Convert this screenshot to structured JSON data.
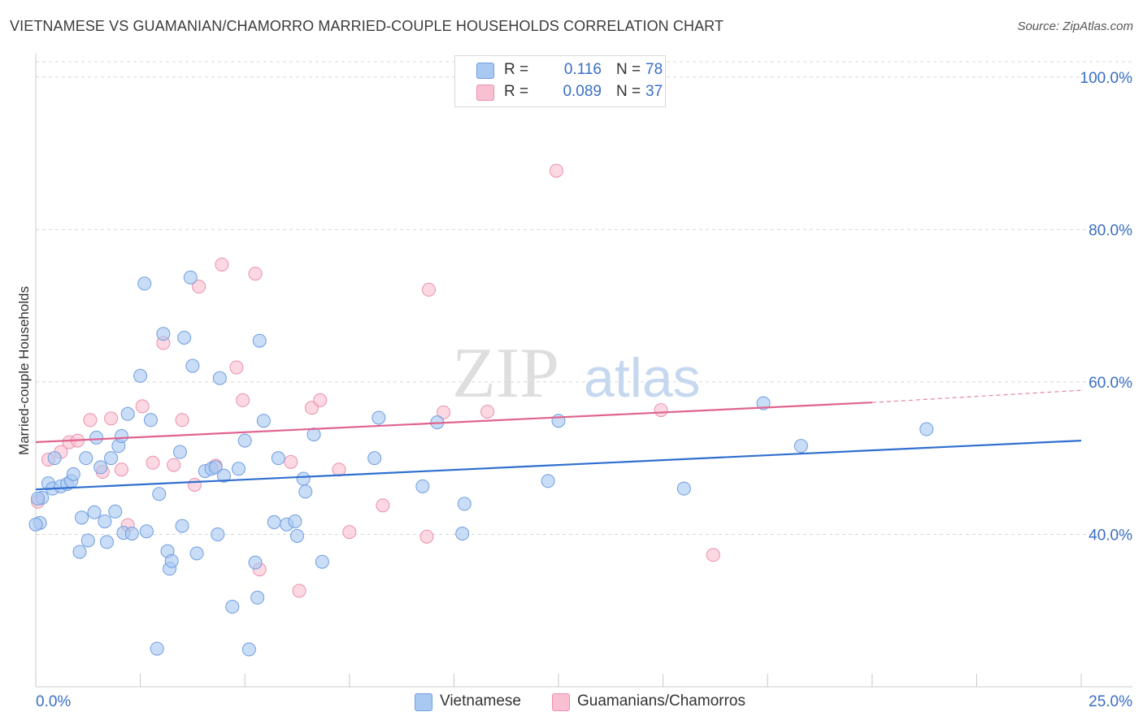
{
  "title": "VIETNAMESE VS GUAMANIAN/CHAMORRO MARRIED-COUPLE HOUSEHOLDS CORRELATION CHART",
  "source": "Source: ZipAtlas.com",
  "watermark": {
    "zip": "ZIP",
    "atlas": "atlas"
  },
  "colors": {
    "blue_fill": "#a9c8f2",
    "blue_stroke": "#6f9de0",
    "blue_line": "#2f6fcf",
    "pink_fill": "#f9c0d1",
    "pink_stroke": "#ec8fac",
    "pink_line": "#e0638f",
    "axis_text": "#3a6fc4",
    "grid": "#d8d8d8"
  },
  "legend": {
    "rows": [
      {
        "r_label": "R =",
        "r_value": "0.116",
        "n_label": "N =",
        "n_value": "78"
      },
      {
        "r_label": "R =",
        "r_value": "0.089",
        "n_label": "N =",
        "n_value": "37"
      }
    ]
  },
  "bottom_legend": {
    "series1": "Vietnamese",
    "series2": "Guamanians/Chamorros"
  },
  "chart_data": {
    "type": "scatter",
    "title": "VIETNAMESE VS GUAMANIAN/CHAMORRO MARRIED-COUPLE HOUSEHOLDS CORRELATION CHART",
    "xlabel": "",
    "ylabel": "Married-couple Households",
    "xlim": [
      0,
      25
    ],
    "ylim": [
      20,
      102
    ],
    "x_tick_labels": [
      {
        "value": 0,
        "label": "0.0%"
      },
      {
        "value": 25,
        "label": "25.0%"
      }
    ],
    "y_tick_labels": [
      {
        "value": 100,
        "label": "100.0%"
      },
      {
        "value": 80,
        "label": "80.0%"
      },
      {
        "value": 60,
        "label": "60.0%"
      },
      {
        "value": 40,
        "label": "40.0%"
      }
    ],
    "grid": true,
    "series": [
      {
        "name": "Vietnamese",
        "r": 0.116,
        "n": 78,
        "trend": {
          "x0": 0,
          "y0": 45.9,
          "x1": 25,
          "y1": 52.3
        },
        "points": [
          [
            0.1,
            41.5
          ],
          [
            0.15,
            44.8
          ],
          [
            0.3,
            46.7
          ],
          [
            0.4,
            46.0
          ],
          [
            0.45,
            50.0
          ],
          [
            0.6,
            46.3
          ],
          [
            0.75,
            46.6
          ],
          [
            0.85,
            47.0
          ],
          [
            0.9,
            47.9
          ],
          [
            1.05,
            37.7
          ],
          [
            1.1,
            42.2
          ],
          [
            1.2,
            50.0
          ],
          [
            1.25,
            39.2
          ],
          [
            1.4,
            42.9
          ],
          [
            1.45,
            52.7
          ],
          [
            1.55,
            48.8
          ],
          [
            1.65,
            41.7
          ],
          [
            1.7,
            39.0
          ],
          [
            1.8,
            50.0
          ],
          [
            1.9,
            43.0
          ],
          [
            1.98,
            51.6
          ],
          [
            2.05,
            52.9
          ],
          [
            2.1,
            40.2
          ],
          [
            2.2,
            55.8
          ],
          [
            2.3,
            40.1
          ],
          [
            2.5,
            60.8
          ],
          [
            2.6,
            72.9
          ],
          [
            2.65,
            40.4
          ],
          [
            2.75,
            55.0
          ],
          [
            2.9,
            25.0
          ],
          [
            2.95,
            45.3
          ],
          [
            3.05,
            66.3
          ],
          [
            3.15,
            37.8
          ],
          [
            3.2,
            35.5
          ],
          [
            3.25,
            36.5
          ],
          [
            3.45,
            50.8
          ],
          [
            3.5,
            41.1
          ],
          [
            3.55,
            65.8
          ],
          [
            3.7,
            73.7
          ],
          [
            3.75,
            62.1
          ],
          [
            3.85,
            37.5
          ],
          [
            4.05,
            48.3
          ],
          [
            4.2,
            48.6
          ],
          [
            4.3,
            48.8
          ],
          [
            4.35,
            40.0
          ],
          [
            4.4,
            60.5
          ],
          [
            4.5,
            47.7
          ],
          [
            4.7,
            30.5
          ],
          [
            4.85,
            48.6
          ],
          [
            5.0,
            52.3
          ],
          [
            5.1,
            24.9
          ],
          [
            5.25,
            36.3
          ],
          [
            5.3,
            31.7
          ],
          [
            5.35,
            65.4
          ],
          [
            5.45,
            54.9
          ],
          [
            5.7,
            41.6
          ],
          [
            5.8,
            50.0
          ],
          [
            6.0,
            41.3
          ],
          [
            6.2,
            41.7
          ],
          [
            6.25,
            39.8
          ],
          [
            6.4,
            47.3
          ],
          [
            6.45,
            45.6
          ],
          [
            6.65,
            53.1
          ],
          [
            6.85,
            36.4
          ],
          [
            8.1,
            50.0
          ],
          [
            8.2,
            55.3
          ],
          [
            9.25,
            46.3
          ],
          [
            9.6,
            54.7
          ],
          [
            10.2,
            40.1
          ],
          [
            10.25,
            44.0
          ],
          [
            12.25,
            47.0
          ],
          [
            12.5,
            54.9
          ],
          [
            15.5,
            46.0
          ],
          [
            17.4,
            57.2
          ],
          [
            18.3,
            51.6
          ],
          [
            21.3,
            53.8
          ],
          [
            0.0,
            41.3
          ],
          [
            0.05,
            44.7
          ]
        ]
      },
      {
        "name": "Guamanians/Chamorros",
        "r": 0.089,
        "n": 37,
        "trend": {
          "x0": 0,
          "y0": 52.1,
          "x1": 20,
          "y1": 57.3,
          "dash_x1": 25,
          "dash_y1": 58.9
        },
        "points": [
          [
            0.05,
            44.3
          ],
          [
            0.3,
            49.8
          ],
          [
            0.6,
            50.8
          ],
          [
            0.8,
            52.1
          ],
          [
            1.0,
            52.3
          ],
          [
            1.3,
            55.0
          ],
          [
            1.6,
            48.2
          ],
          [
            1.8,
            55.2
          ],
          [
            2.05,
            48.5
          ],
          [
            2.2,
            41.2
          ],
          [
            2.55,
            56.8
          ],
          [
            2.8,
            49.4
          ],
          [
            3.05,
            65.1
          ],
          [
            3.3,
            49.1
          ],
          [
            3.5,
            55.0
          ],
          [
            3.8,
            46.5
          ],
          [
            3.9,
            72.5
          ],
          [
            4.3,
            49.0
          ],
          [
            4.45,
            75.4
          ],
          [
            4.8,
            61.9
          ],
          [
            4.95,
            57.6
          ],
          [
            5.25,
            74.2
          ],
          [
            5.35,
            35.4
          ],
          [
            6.1,
            49.5
          ],
          [
            6.3,
            32.6
          ],
          [
            6.6,
            56.6
          ],
          [
            6.8,
            57.6
          ],
          [
            7.25,
            48.5
          ],
          [
            7.5,
            40.3
          ],
          [
            8.3,
            43.8
          ],
          [
            9.35,
            39.7
          ],
          [
            9.4,
            72.1
          ],
          [
            9.75,
            56.0
          ],
          [
            10.8,
            56.1
          ],
          [
            12.45,
            87.7
          ],
          [
            14.95,
            56.3
          ],
          [
            16.2,
            37.3
          ]
        ]
      }
    ]
  }
}
